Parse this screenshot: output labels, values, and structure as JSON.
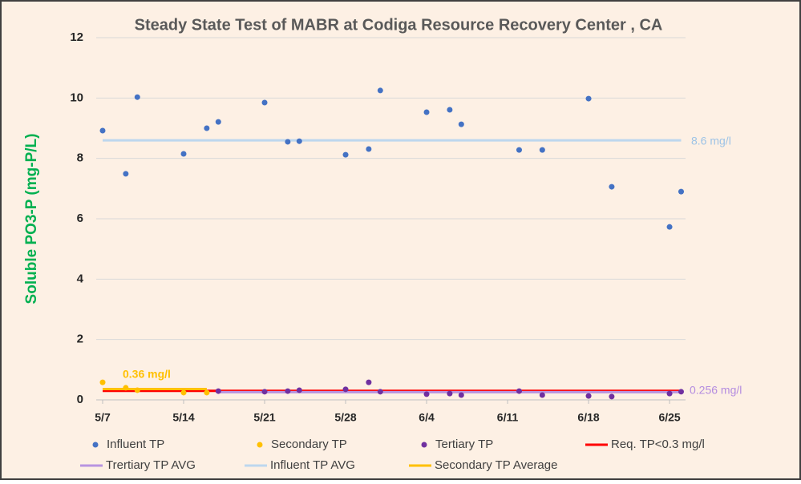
{
  "chart_data": {
    "type": "scatter",
    "title": "Steady State Test of MABR at Codiga Resource Recovery Center , CA",
    "y_label": "Soluble PO3-P (mg-P/L)",
    "xlim": [
      "5/7",
      "6/26"
    ],
    "xticks": [
      "5/7",
      "5/14",
      "5/21",
      "5/28",
      "6/4",
      "6/11",
      "6/18",
      "6/25"
    ],
    "ylim": [
      0,
      12
    ],
    "yticks": [
      0,
      2,
      4,
      6,
      8,
      10,
      12
    ],
    "grid": true,
    "series": [
      {
        "name": "Influent TP",
        "color": "#4472c4",
        "mode": "markers",
        "x": [
          "5/7",
          "5/9",
          "5/10",
          "5/14",
          "5/16",
          "5/17",
          "5/21",
          "5/23",
          "5/24",
          "5/28",
          "5/30",
          "5/31",
          "6/4",
          "6/6",
          "6/7",
          "6/12",
          "6/14",
          "6/18",
          "6/20",
          "6/25",
          "6/26"
        ],
        "values": [
          8.92,
          7.49,
          10.03,
          8.15,
          9.0,
          9.21,
          9.85,
          8.55,
          8.57,
          8.12,
          8.31,
          10.25,
          9.53,
          9.61,
          9.13,
          8.28,
          8.28,
          9.98,
          7.06,
          5.73,
          6.9
        ]
      },
      {
        "name": "Secondary TP",
        "color": "#ffc000",
        "mode": "markers",
        "x": [
          "5/7",
          "5/9",
          "5/10",
          "5/14",
          "5/16"
        ],
        "values": [
          0.58,
          0.4,
          0.32,
          0.24,
          0.24
        ]
      },
      {
        "name": "Tertiary TP",
        "color": "#7030a0",
        "mode": "markers",
        "x": [
          "5/17",
          "5/21",
          "5/23",
          "5/24",
          "5/28",
          "5/30",
          "5/31",
          "6/4",
          "6/6",
          "6/7",
          "6/12",
          "6/14",
          "6/18",
          "6/20",
          "6/25",
          "6/26"
        ],
        "values": [
          0.29,
          0.27,
          0.29,
          0.32,
          0.35,
          0.58,
          0.27,
          0.19,
          0.21,
          0.16,
          0.29,
          0.16,
          0.13,
          0.11,
          0.21,
          0.27
        ]
      },
      {
        "name": "Req. TP<0.3 mg/l",
        "color": "#ff0000",
        "mode": "line",
        "x": [
          "5/7",
          "6/26"
        ],
        "values": [
          0.3,
          0.3
        ]
      },
      {
        "name": "Trertiary TP AVG",
        "color": "#b894e0",
        "mode": "line",
        "x": [
          "5/17",
          "6/26"
        ],
        "values": [
          0.256,
          0.256
        ]
      },
      {
        "name": "Influent TP AVG",
        "color": "#bdd7ee",
        "mode": "line",
        "x": [
          "5/7",
          "6/26"
        ],
        "values": [
          8.6,
          8.6
        ]
      },
      {
        "name": "Secondary TP Average",
        "color": "#ffc000",
        "mode": "line",
        "x": [
          "5/7",
          "5/16"
        ],
        "values": [
          0.36,
          0.36
        ]
      }
    ],
    "annotations": [
      {
        "text": "8.6 mg/l",
        "color": "#9dc3e6"
      },
      {
        "text": "0.36 mg/l",
        "color": "#ffc000"
      },
      {
        "text": "0.256 mg/l",
        "color": "#b48ce0"
      }
    ]
  }
}
